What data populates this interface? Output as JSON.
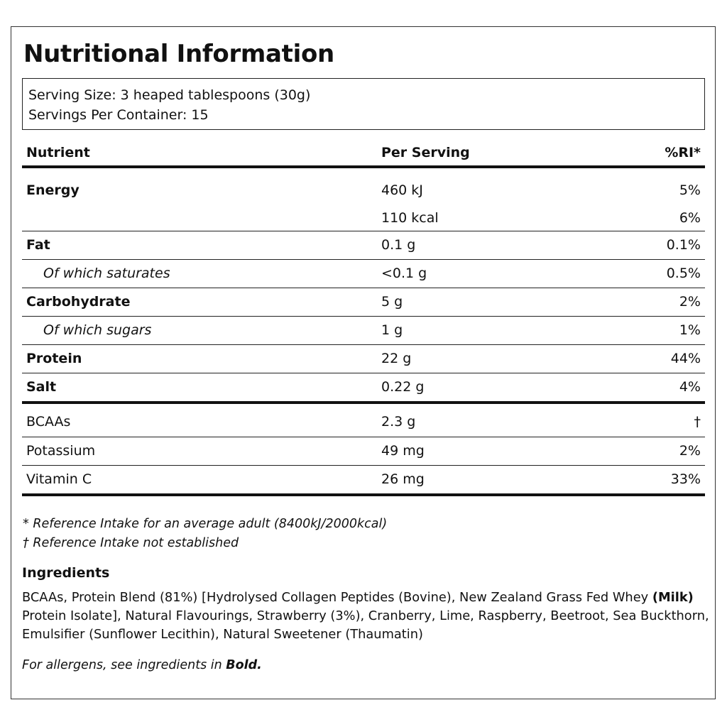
{
  "title": "Nutritional Information",
  "serving": {
    "size": "Serving Size: 3 heaped tablespoons (30g)",
    "per_container": "Servings Per Container: 15"
  },
  "table": {
    "headers": {
      "nutrient": "Nutrient",
      "per_serving": "Per Serving",
      "ri": "%RI*"
    },
    "energy": {
      "name": "Energy",
      "kj": "460 kJ",
      "kj_ri": "5%",
      "kcal": "110 kcal",
      "kcal_ri": "6%"
    },
    "rows": [
      {
        "name": "Fat",
        "per": "0.1 g",
        "ri": "0.1%"
      },
      {
        "name": "Of which saturates",
        "per": "<0.1 g",
        "ri": "0.5%"
      },
      {
        "name": "Carbohydrate",
        "per": "5 g",
        "ri": "2%"
      },
      {
        "name": "Of which sugars",
        "per": "1 g",
        "ri": "1%"
      },
      {
        "name": "Protein",
        "per": "22 g",
        "ri": "44%"
      },
      {
        "name": "Salt",
        "per": "0.22 g",
        "ri": "4%"
      },
      {
        "name": "BCAAs",
        "per": "2.3 g",
        "ri": "†"
      },
      {
        "name": "Potassium",
        "per": "49 mg",
        "ri": "2%"
      },
      {
        "name": "Vitamin C",
        "per": "26 mg",
        "ri": "33%"
      }
    ]
  },
  "footnotes": {
    "ri_note": "* Reference Intake for an average adult (8400kJ/2000kcal)",
    "dagger_note": "† Reference Intake not established"
  },
  "ingredients": {
    "heading": "Ingredients",
    "line1_a": "BCAAs, Protein Blend (81%) [Hydrolysed Collagen Peptides (Bovine), New Zealand Grass Fed Whey ",
    "line1_bold": "(Milk)",
    "line2": "Protein Isolate], Natural Flavourings, Strawberry (3%), Cranberry, Lime, Raspberry, Beetroot, Sea Buckthorn,",
    "line3": "Emulsifier (Sunflower Lecithin), Natural Sweetener (Thaumatin)"
  },
  "allergen": {
    "text": "For allergens, see ingredients in ",
    "bold": "Bold."
  }
}
